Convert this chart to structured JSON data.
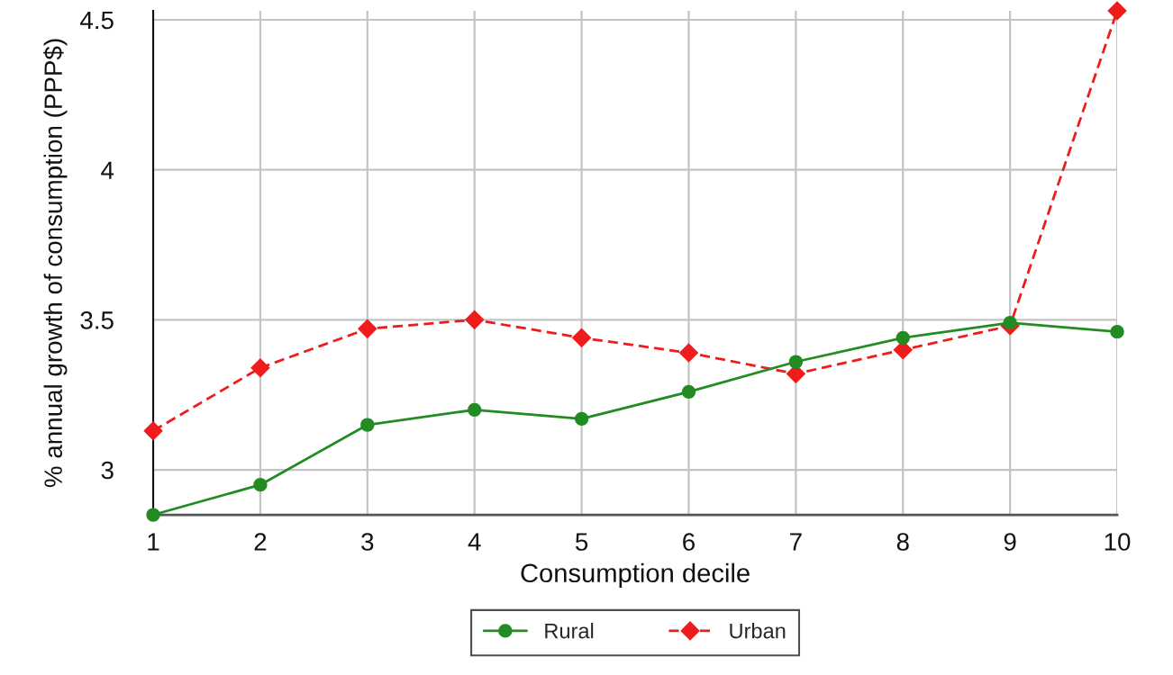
{
  "chart_data": {
    "type": "line",
    "xlabel": "Consumption decile",
    "ylabel": "% annual growth of consumption (PPP$)",
    "x": [
      1,
      2,
      3,
      4,
      5,
      6,
      7,
      8,
      9,
      10
    ],
    "series": [
      {
        "name": "Rural",
        "color": "#228b22",
        "marker": "circle",
        "line_style": "solid",
        "values": [
          2.85,
          2.95,
          3.15,
          3.2,
          3.17,
          3.26,
          3.36,
          3.44,
          3.49,
          3.46
        ]
      },
      {
        "name": "Urban",
        "color": "#ee1c1c",
        "marker": "diamond",
        "line_style": "dashed",
        "values": [
          3.13,
          3.34,
          3.47,
          3.5,
          3.44,
          3.39,
          3.32,
          3.4,
          3.48,
          4.53
        ]
      }
    ],
    "xlim": [
      1,
      10
    ],
    "xticks": [
      1,
      2,
      3,
      4,
      5,
      6,
      7,
      8,
      9,
      10
    ],
    "ylim": [
      2.85,
      4.53
    ],
    "yticks": [
      3,
      3.5,
      4,
      4.5
    ],
    "grid": true,
    "legend": "bottom"
  }
}
